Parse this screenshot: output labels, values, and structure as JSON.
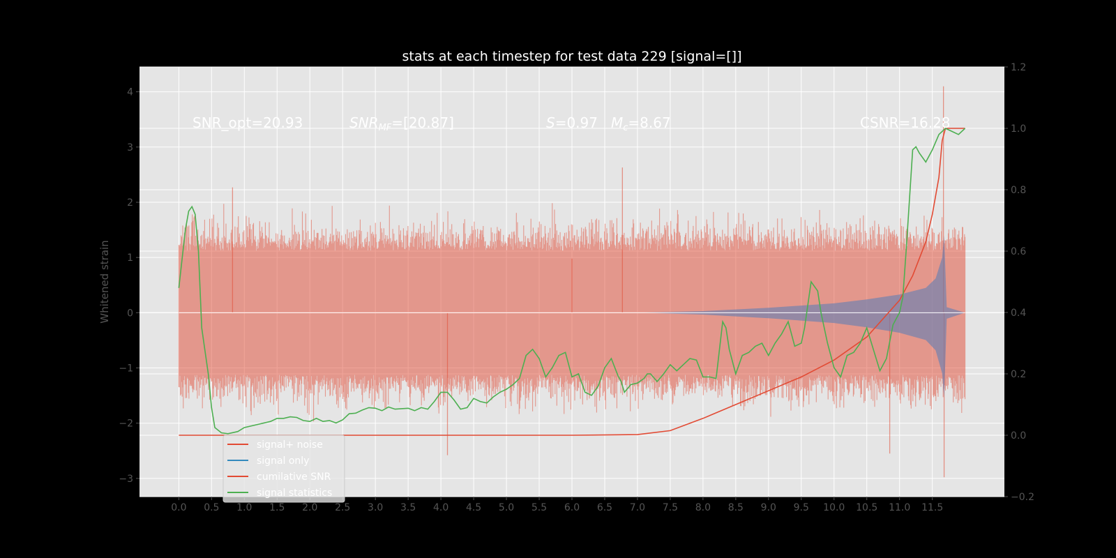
{
  "chart_data": {
    "type": "line",
    "title": "stats at each timestep for test data 229 [signal=[]]",
    "ylabel": "Whitened strain",
    "xlabel": "",
    "xlim": [
      -0.6,
      12.6
    ],
    "ylim": [
      -3.33,
      4.45
    ],
    "y2lim": [
      -0.2,
      1.2
    ],
    "grid": true,
    "style": "ggplot",
    "x_ticks": [
      "0.0",
      "0.5",
      "1.0",
      "1.5",
      "2.0",
      "2.5",
      "3.0",
      "3.5",
      "4.0",
      "4.5",
      "5.0",
      "5.5",
      "6.0",
      "6.5",
      "7.0",
      "7.5",
      "8.0",
      "8.5",
      "9.0",
      "9.5",
      "10.0",
      "10.5",
      "11.0",
      "11.5"
    ],
    "y_ticks": [
      "4",
      "3",
      "2",
      "1",
      "0",
      "−1",
      "−2",
      "−3"
    ],
    "y2_ticks": [
      "1.2",
      "1.0",
      "0.8",
      "0.6",
      "0.4",
      "0.2",
      "0.0",
      "−0.2"
    ],
    "annotations": {
      "snr_opt": "SNR_opt=20.93",
      "snr_mf_sym": "SNR",
      "snr_mf_sub": "MF",
      "snr_mf_val": "=[20.87]",
      "s_sym": "S",
      "s_val": "=0.97",
      "mc_sym": "M",
      "mc_sub": "c",
      "mc_val": "=8.67",
      "csnr": "CSNR=16.28"
    },
    "legend": {
      "placement": "lower-left",
      "items": [
        {
          "label": "signal+ noise",
          "color": "#E24A33"
        },
        {
          "label": "signal only",
          "color": "#348ABD"
        },
        {
          "label": "cumilative SNR",
          "color": "#E24A33"
        },
        {
          "label": "signal statistics",
          "color": "#4CAF50"
        }
      ]
    },
    "series": [
      {
        "name": "signal+ noise",
        "axis": "left",
        "color": "#E24A33",
        "x_range": [
          0.0,
          12.0
        ],
        "band_upper_typical": 1.5,
        "band_lower_typical": -1.5,
        "notable_peaks": [
          [
            0.82,
            2.27
          ],
          [
            6.77,
            2.63
          ],
          [
            11.67,
            4.1
          ],
          [
            11.68,
            -2.98
          ],
          [
            4.1,
            -2.58
          ],
          [
            10.85,
            -2.55
          ],
          [
            6.0,
            0.98
          ]
        ]
      },
      {
        "name": "signal only",
        "axis": "left",
        "color": "#348ABD",
        "envelope": [
          [
            7.0,
            0.0
          ],
          [
            8.0,
            0.03
          ],
          [
            9.0,
            0.09
          ],
          [
            10.0,
            0.17
          ],
          [
            10.5,
            0.24
          ],
          [
            11.0,
            0.33
          ],
          [
            11.4,
            0.45
          ],
          [
            11.55,
            0.62
          ],
          [
            11.65,
            1.0
          ],
          [
            11.68,
            1.4
          ],
          [
            11.72,
            0.1
          ],
          [
            12.0,
            0.0
          ]
        ]
      },
      {
        "name": "cumilative SNR",
        "axis": "right",
        "color": "#E24A33",
        "points": [
          [
            0.0,
            0.0
          ],
          [
            6.0,
            0.0
          ],
          [
            7.0,
            0.002
          ],
          [
            7.5,
            0.015
          ],
          [
            8.0,
            0.055
          ],
          [
            8.5,
            0.1
          ],
          [
            9.0,
            0.145
          ],
          [
            9.5,
            0.19
          ],
          [
            10.0,
            0.245
          ],
          [
            10.5,
            0.32
          ],
          [
            11.0,
            0.44
          ],
          [
            11.2,
            0.52
          ],
          [
            11.4,
            0.63
          ],
          [
            11.5,
            0.72
          ],
          [
            11.6,
            0.84
          ],
          [
            11.65,
            0.96
          ],
          [
            11.7,
            1.0
          ],
          [
            12.0,
            1.0
          ]
        ]
      },
      {
        "name": "signal statistics",
        "axis": "right",
        "color": "#4CAF50",
        "points": [
          [
            0.0,
            0.48
          ],
          [
            0.1,
            0.67
          ],
          [
            0.15,
            0.73
          ],
          [
            0.2,
            0.745
          ],
          [
            0.25,
            0.72
          ],
          [
            0.3,
            0.6
          ],
          [
            0.35,
            0.35
          ],
          [
            0.45,
            0.2
          ],
          [
            0.5,
            0.09
          ],
          [
            0.55,
            0.025
          ],
          [
            0.65,
            0.008
          ],
          [
            0.75,
            0.005
          ],
          [
            0.9,
            0.012
          ],
          [
            1.0,
            0.025
          ],
          [
            1.2,
            0.035
          ],
          [
            1.4,
            0.045
          ],
          [
            1.5,
            0.055
          ],
          [
            1.6,
            0.055
          ],
          [
            1.7,
            0.06
          ],
          [
            1.8,
            0.058
          ],
          [
            1.9,
            0.048
          ],
          [
            2.0,
            0.045
          ],
          [
            2.1,
            0.055
          ],
          [
            2.2,
            0.045
          ],
          [
            2.3,
            0.048
          ],
          [
            2.4,
            0.04
          ],
          [
            2.5,
            0.05
          ],
          [
            2.6,
            0.07
          ],
          [
            2.7,
            0.072
          ],
          [
            2.8,
            0.082
          ],
          [
            2.9,
            0.09
          ],
          [
            3.0,
            0.088
          ],
          [
            3.1,
            0.08
          ],
          [
            3.2,
            0.092
          ],
          [
            3.3,
            0.085
          ],
          [
            3.5,
            0.088
          ],
          [
            3.6,
            0.08
          ],
          [
            3.7,
            0.09
          ],
          [
            3.8,
            0.085
          ],
          [
            3.9,
            0.11
          ],
          [
            4.0,
            0.14
          ],
          [
            4.1,
            0.14
          ],
          [
            4.2,
            0.115
          ],
          [
            4.3,
            0.085
          ],
          [
            4.4,
            0.09
          ],
          [
            4.5,
            0.12
          ],
          [
            4.6,
            0.11
          ],
          [
            4.7,
            0.105
          ],
          [
            4.8,
            0.125
          ],
          [
            4.9,
            0.14
          ],
          [
            5.0,
            0.15
          ],
          [
            5.1,
            0.165
          ],
          [
            5.2,
            0.185
          ],
          [
            5.3,
            0.26
          ],
          [
            5.4,
            0.28
          ],
          [
            5.5,
            0.25
          ],
          [
            5.6,
            0.19
          ],
          [
            5.7,
            0.22
          ],
          [
            5.8,
            0.26
          ],
          [
            5.9,
            0.27
          ],
          [
            6.0,
            0.19
          ],
          [
            6.1,
            0.2
          ],
          [
            6.2,
            0.14
          ],
          [
            6.3,
            0.13
          ],
          [
            6.4,
            0.16
          ],
          [
            6.5,
            0.22
          ],
          [
            6.6,
            0.25
          ],
          [
            6.7,
            0.195
          ],
          [
            6.75,
            0.175
          ],
          [
            6.8,
            0.14
          ],
          [
            6.9,
            0.165
          ],
          [
            7.0,
            0.17
          ],
          [
            7.1,
            0.185
          ],
          [
            7.15,
            0.2
          ],
          [
            7.2,
            0.2
          ],
          [
            7.3,
            0.175
          ],
          [
            7.4,
            0.2
          ],
          [
            7.5,
            0.23
          ],
          [
            7.6,
            0.21
          ],
          [
            7.7,
            0.23
          ],
          [
            7.8,
            0.25
          ],
          [
            7.9,
            0.245
          ],
          [
            8.0,
            0.19
          ],
          [
            8.1,
            0.19
          ],
          [
            8.2,
            0.185
          ],
          [
            8.3,
            0.37
          ],
          [
            8.35,
            0.35
          ],
          [
            8.4,
            0.28
          ],
          [
            8.5,
            0.2
          ],
          [
            8.6,
            0.26
          ],
          [
            8.7,
            0.27
          ],
          [
            8.8,
            0.29
          ],
          [
            8.9,
            0.3
          ],
          [
            9.0,
            0.26
          ],
          [
            9.1,
            0.3
          ],
          [
            9.2,
            0.33
          ],
          [
            9.3,
            0.37
          ],
          [
            9.4,
            0.29
          ],
          [
            9.5,
            0.3
          ],
          [
            9.55,
            0.35
          ],
          [
            9.65,
            0.5
          ],
          [
            9.75,
            0.47
          ],
          [
            9.8,
            0.4
          ],
          [
            9.9,
            0.3
          ],
          [
            10.0,
            0.22
          ],
          [
            10.1,
            0.19
          ],
          [
            10.2,
            0.26
          ],
          [
            10.3,
            0.27
          ],
          [
            10.4,
            0.3
          ],
          [
            10.5,
            0.35
          ],
          [
            10.6,
            0.28
          ],
          [
            10.7,
            0.21
          ],
          [
            10.8,
            0.25
          ],
          [
            10.9,
            0.36
          ],
          [
            11.0,
            0.4
          ],
          [
            11.05,
            0.45
          ],
          [
            11.1,
            0.6
          ],
          [
            11.2,
            0.93
          ],
          [
            11.25,
            0.94
          ],
          [
            11.3,
            0.92
          ],
          [
            11.4,
            0.89
          ],
          [
            11.5,
            0.93
          ],
          [
            11.6,
            0.98
          ],
          [
            11.7,
            1.0
          ],
          [
            11.8,
            0.99
          ],
          [
            11.9,
            0.98
          ],
          [
            12.0,
            1.0
          ]
        ]
      }
    ]
  }
}
